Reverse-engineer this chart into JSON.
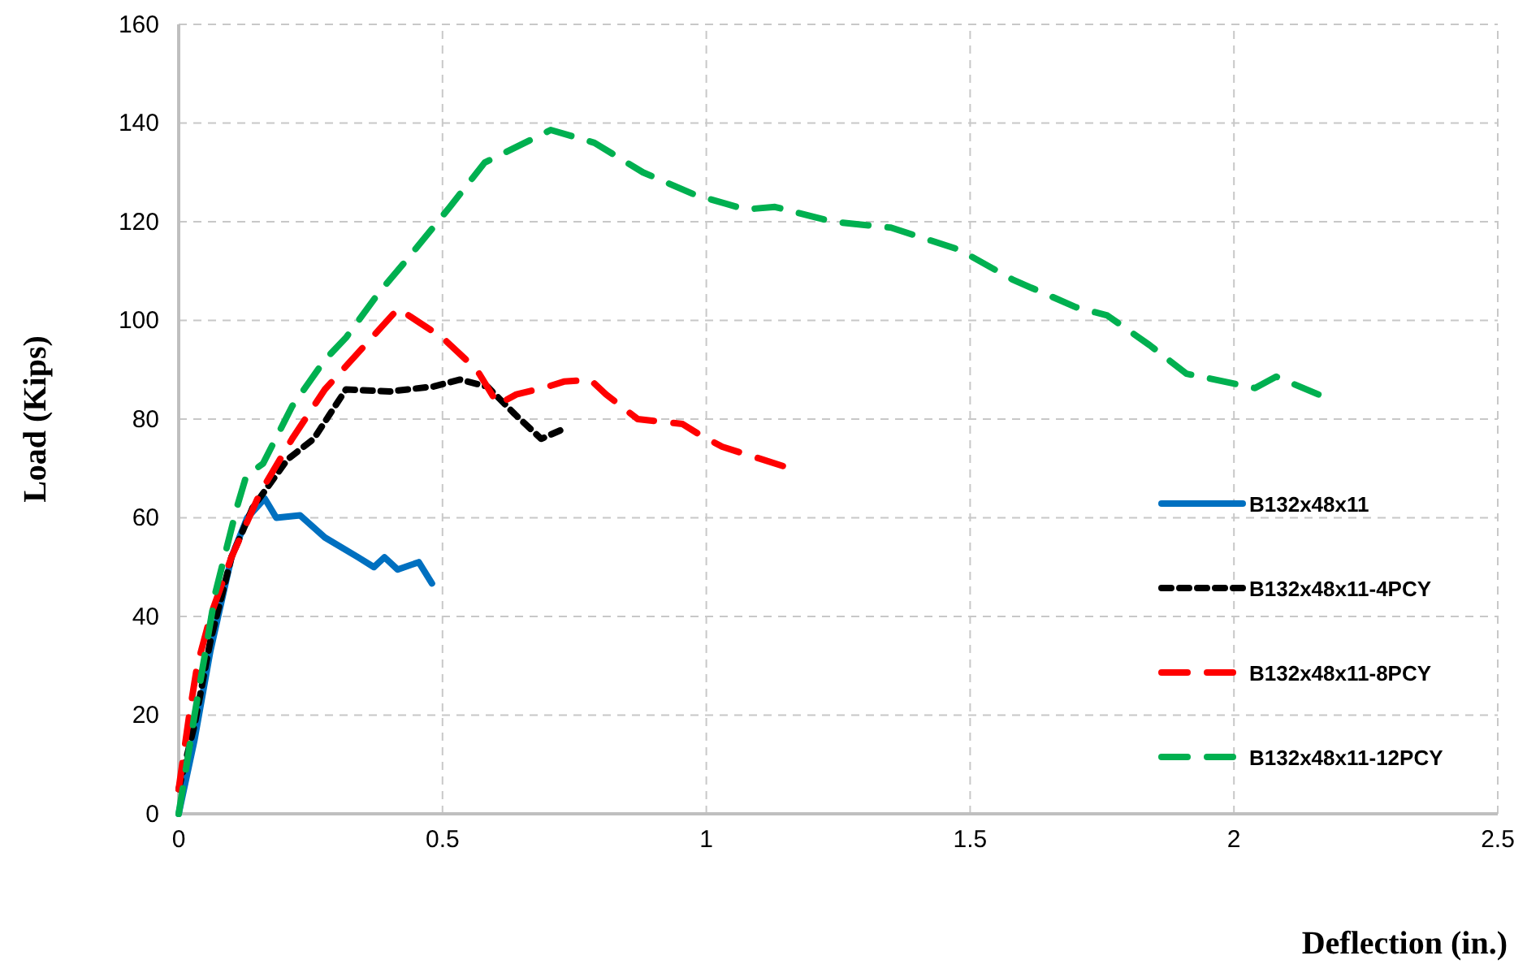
{
  "chart_data": {
    "type": "line",
    "xlabel": "Deflection (in.)",
    "ylabel": "Load (Kips)",
    "xlim": [
      0,
      2.5
    ],
    "xticks": [
      0,
      0.5,
      1,
      1.5,
      2,
      2.5
    ],
    "ylim": [
      0,
      160
    ],
    "yticks": [
      0,
      20,
      40,
      60,
      80,
      100,
      120,
      140,
      160
    ],
    "grid": true,
    "legend": "right",
    "marker": "none",
    "series": [
      {
        "name": "B132x48x11",
        "color": "#0070c0",
        "line_style": "solid",
        "x": [
          0,
          0.03,
          0.06,
          0.1,
          0.13,
          0.163,
          0.185,
          0.23,
          0.277,
          0.34,
          0.37,
          0.39,
          0.415,
          0.455,
          0.48
        ],
        "values": [
          0,
          15,
          33,
          52,
          60,
          63.9,
          60,
          60.5,
          56,
          52,
          50,
          52,
          49.5,
          51,
          46.7
        ]
      },
      {
        "name": "B132x48x11-4PCY",
        "color": "#000000",
        "line_style": "dotted",
        "x": [
          0,
          0.03,
          0.06,
          0.1,
          0.14,
          0.206,
          0.256,
          0.317,
          0.4,
          0.483,
          0.533,
          0.585,
          0.637,
          0.687,
          0.723
        ],
        "values": [
          5,
          18,
          35,
          52,
          62,
          71.8,
          76,
          86,
          85.6,
          86.6,
          88,
          86.6,
          81,
          76,
          77.7
        ]
      },
      {
        "name": "B132x48x11-8PCY",
        "color": "#ff0000",
        "line_style": "dashed",
        "x": [
          0,
          0.02,
          0.035,
          0.06,
          0.1,
          0.154,
          0.215,
          0.277,
          0.416,
          0.5,
          0.565,
          0.605,
          0.64,
          0.7,
          0.73,
          0.78,
          0.81,
          0.87,
          0.955,
          0.985,
          1.03,
          1.145
        ],
        "values": [
          5,
          20,
          30,
          40,
          52,
          65,
          76,
          86,
          102.4,
          96.5,
          90,
          83,
          85,
          86.6,
          87.6,
          88,
          85,
          80,
          79,
          77,
          74.4,
          70.5
        ]
      },
      {
        "name": "B132x48x11-12PCY",
        "color": "#00b050",
        "line_style": "dashed",
        "x": [
          0,
          0.03,
          0.07,
          0.11,
          0.128,
          0.16,
          0.215,
          0.277,
          0.317,
          0.38,
          0.43,
          0.514,
          0.58,
          0.637,
          0.705,
          0.788,
          0.88,
          0.98,
          1.075,
          1.13,
          1.24,
          1.35,
          1.48,
          1.58,
          1.7,
          1.76,
          1.84,
          1.91,
          2.04,
          2.08,
          2.16
        ],
        "values": [
          0,
          20,
          45,
          62,
          68.5,
          71,
          82.6,
          92,
          96.5,
          105.7,
          112,
          123,
          132,
          135,
          138.6,
          136,
          130,
          125.4,
          122.5,
          123,
          120,
          118.8,
          114.3,
          108.3,
          102.7,
          101,
          95,
          89.2,
          86.3,
          88.6,
          85
        ]
      }
    ]
  }
}
